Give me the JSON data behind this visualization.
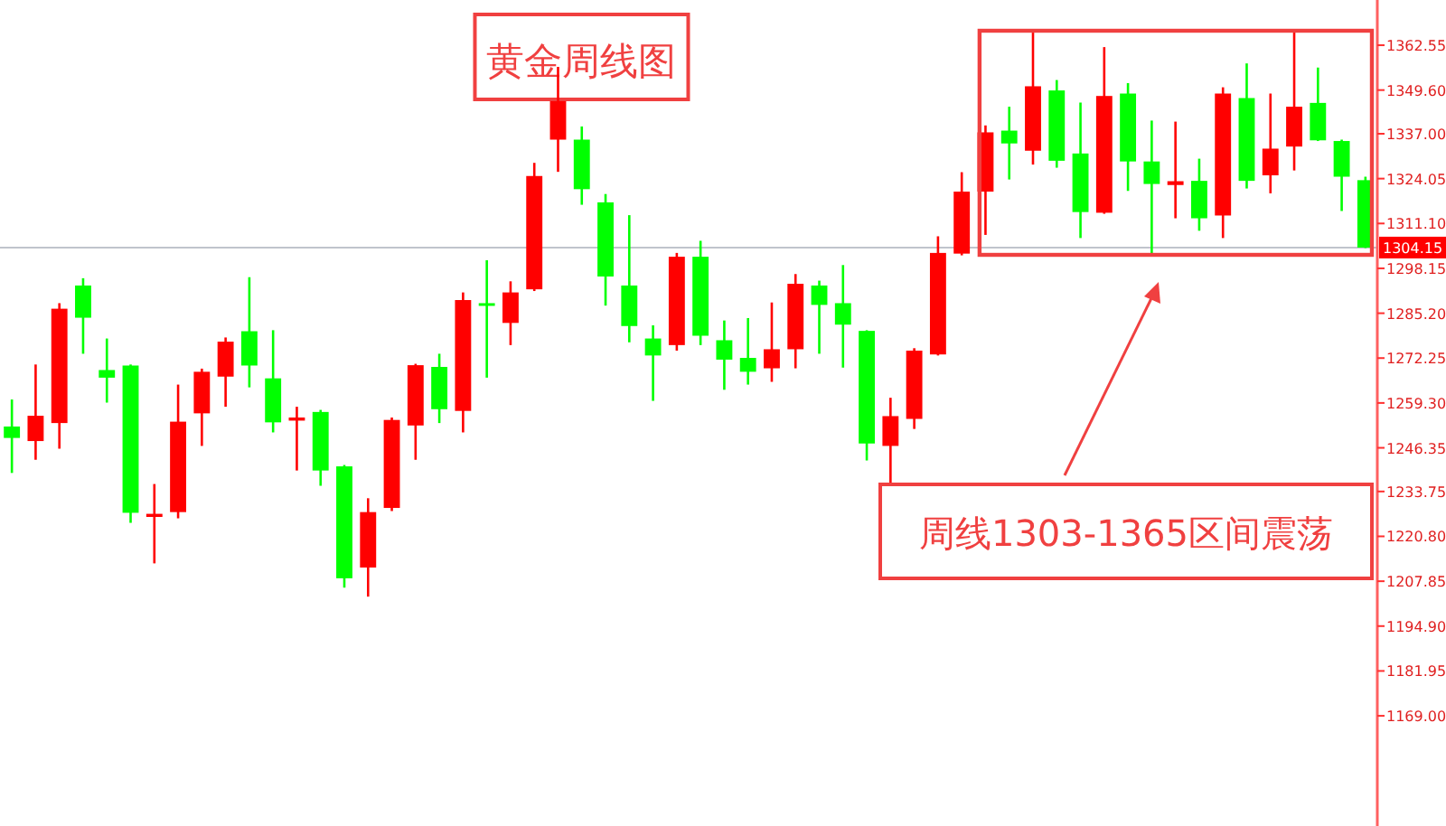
{
  "chart_data": {
    "type": "candlestick",
    "title": "黄金周线图",
    "annotations": [
      "周线1303-1365区间震荡"
    ],
    "categories": [
      null,
      null,
      null,
      null,
      null,
      null,
      null,
      null,
      null,
      null,
      null,
      null,
      null,
      null,
      null,
      null,
      null,
      null,
      null,
      null,
      null,
      null,
      null,
      null,
      null,
      null,
      null,
      null,
      null,
      null,
      null,
      null,
      null,
      null,
      null,
      null,
      null,
      null,
      null,
      null,
      null,
      null,
      null,
      null,
      null,
      null,
      null,
      null,
      null,
      null,
      null,
      null,
      null,
      null,
      null,
      null,
      null,
      null
    ],
    "ohlc": [
      [
        1252.5,
        1260.3,
        1239.1,
        1249.2
      ],
      [
        1248.3,
        1270.4,
        1242.9,
        1255.6
      ],
      [
        1253.5,
        1288.1,
        1246.1,
        1286.5
      ],
      [
        1293.2,
        1295.3,
        1273.5,
        1283.9
      ],
      [
        1268.8,
        1277.9,
        1259.4,
        1266.6
      ],
      [
        1270.1,
        1270.4,
        1224.7,
        1227.6
      ],
      [
        1226.4,
        1235.9,
        1213.0,
        1227.3
      ],
      [
        1227.8,
        1264.6,
        1226.0,
        1253.9
      ],
      [
        1256.3,
        1269.2,
        1246.9,
        1268.3
      ],
      [
        1266.9,
        1278.2,
        1258.2,
        1277.0
      ],
      [
        1280.0,
        1295.6,
        1263.8,
        1270.1
      ],
      [
        1266.4,
        1280.3,
        1250.8,
        1253.7
      ],
      [
        1254.2,
        1258.2,
        1239.8,
        1255.1
      ],
      [
        1256.7,
        1257.3,
        1235.4,
        1239.8
      ],
      [
        1241.0,
        1241.4,
        1206.0,
        1208.7
      ],
      [
        1211.8,
        1231.8,
        1203.4,
        1227.8
      ],
      [
        1229.0,
        1255.1,
        1228.1,
        1254.4
      ],
      [
        1252.8,
        1270.6,
        1242.9,
        1270.2
      ],
      [
        1269.7,
        1273.5,
        1253.5,
        1257.5
      ],
      [
        1257.0,
        1291.2,
        1250.8,
        1289.0
      ],
      [
        1288.1,
        1300.5,
        1266.6,
        1287.4
      ],
      [
        1282.4,
        1294.4,
        1276.0,
        1291.2
      ],
      [
        1292.1,
        1328.6,
        1291.6,
        1324.8
      ],
      [
        1335.3,
        1356.3,
        1326.0,
        1346.4
      ],
      [
        1335.3,
        1339.1,
        1316.5,
        1321.0
      ],
      [
        1317.2,
        1319.6,
        1287.4,
        1295.8
      ],
      [
        1293.2,
        1313.5,
        1276.8,
        1281.5
      ],
      [
        1277.9,
        1281.7,
        1259.9,
        1273.0
      ],
      [
        1276.0,
        1302.6,
        1274.4,
        1301.5
      ],
      [
        1301.5,
        1306.1,
        1276.0,
        1278.7
      ],
      [
        1277.4,
        1283.1,
        1263.1,
        1271.8
      ],
      [
        1272.3,
        1283.8,
        1264.6,
        1268.3
      ],
      [
        1269.3,
        1288.3,
        1265.4,
        1274.8
      ],
      [
        1274.8,
        1296.5,
        1269.3,
        1293.7
      ],
      [
        1293.2,
        1294.6,
        1273.5,
        1287.6
      ],
      [
        1288.1,
        1299.1,
        1269.5,
        1281.9
      ],
      [
        1280.1,
        1280.3,
        1242.7,
        1247.6
      ],
      [
        1246.9,
        1260.8,
        1235.6,
        1255.5
      ],
      [
        1254.7,
        1275.1,
        1251.8,
        1274.4
      ],
      [
        1273.3,
        1307.4,
        1273.0,
        1302.6
      ],
      [
        1302.4,
        1325.9,
        1301.9,
        1320.3
      ],
      [
        1320.3,
        1339.4,
        1307.8,
        1337.4
      ],
      [
        1337.9,
        1344.8,
        1323.8,
        1334.2
      ],
      [
        1332.1,
        1366.2,
        1328.1,
        1350.7
      ],
      [
        1349.5,
        1352.5,
        1327.2,
        1329.2
      ],
      [
        1331.3,
        1346.0,
        1306.9,
        1314.4
      ],
      [
        1314.2,
        1362.0,
        1313.9,
        1347.9
      ],
      [
        1348.6,
        1351.6,
        1320.5,
        1329.0
      ],
      [
        1329.0,
        1340.8,
        1301.7,
        1322.5
      ],
      [
        1322.2,
        1340.5,
        1312.6,
        1323.3
      ],
      [
        1323.4,
        1329.8,
        1309.0,
        1312.6
      ],
      [
        1313.4,
        1350.4,
        1306.9,
        1348.6
      ],
      [
        1347.3,
        1357.3,
        1321.2,
        1323.4
      ],
      [
        1325.0,
        1348.6,
        1319.8,
        1332.7
      ],
      [
        1333.3,
        1366.2,
        1326.4,
        1344.8
      ],
      [
        1345.9,
        1356.1,
        1334.9,
        1335.1
      ],
      [
        1334.9,
        1335.3,
        1314.7,
        1324.6
      ],
      [
        1323.6,
        1324.6,
        1304.0,
        1304.15
      ]
    ],
    "colors": [
      "#00ff00",
      "#ff0000",
      "#ff0000",
      "#00ff00",
      "#00ff00",
      "#00ff00",
      "#ff0000",
      "#ff0000",
      "#ff0000",
      "#ff0000",
      "#00ff00",
      "#00ff00",
      "#ff0000",
      "#00ff00",
      "#00ff00",
      "#ff0000",
      "#ff0000",
      "#ff0000",
      "#00ff00",
      "#ff0000",
      "#00ff00",
      "#ff0000",
      "#ff0000",
      "#ff0000",
      "#00ff00",
      "#00ff00",
      "#00ff00",
      "#00ff00",
      "#ff0000",
      "#00ff00",
      "#00ff00",
      "#00ff00",
      "#ff0000",
      "#ff0000",
      "#00ff00",
      "#00ff00",
      "#00ff00",
      "#ff0000",
      "#ff0000",
      "#ff0000",
      "#ff0000",
      "#ff0000",
      "#00ff00",
      "#ff0000",
      "#00ff00",
      "#00ff00",
      "#ff0000",
      "#00ff00",
      "#00ff00",
      "#ff0000",
      "#00ff00",
      "#ff0000",
      "#00ff00",
      "#ff0000",
      "#ff0000",
      "#00ff00",
      "#00ff00",
      "#00ff00"
    ],
    "ylim": [
      1137.2,
      1375.6
    ],
    "yticks": [
      {
        "value": 1362.55,
        "label": "1362.55"
      },
      {
        "value": 1349.6,
        "label": "1349.60"
      },
      {
        "value": 1337,
        "label": "1337.00"
      },
      {
        "value": 1324.05,
        "label": "1324.05"
      },
      {
        "value": 1311.1,
        "label": "1311.10"
      },
      {
        "value": 1298.15,
        "label": "1298.15"
      },
      {
        "value": 1285.2,
        "label": "1285.20"
      },
      {
        "value": 1272.25,
        "label": "1272.25"
      },
      {
        "value": 1259.3,
        "label": "1259.30"
      },
      {
        "value": 1246.35,
        "label": "1246.35"
      },
      {
        "value": 1233.75,
        "label": "1233.75"
      },
      {
        "value": 1220.8,
        "label": "1220.80"
      },
      {
        "value": 1207.85,
        "label": "1207.85"
      },
      {
        "value": 1194.9,
        "label": "1194.90"
      },
      {
        "value": 1181.95,
        "label": "1181.95"
      },
      {
        "value": 1169,
        "label": "1169.00"
      }
    ],
    "ref_lines": [
      {
        "axis": "y",
        "value": 1304.15,
        "label": "1304.15",
        "color": "#c0c4cc"
      }
    ],
    "tick_labels": "y",
    "grid": false
  }
}
